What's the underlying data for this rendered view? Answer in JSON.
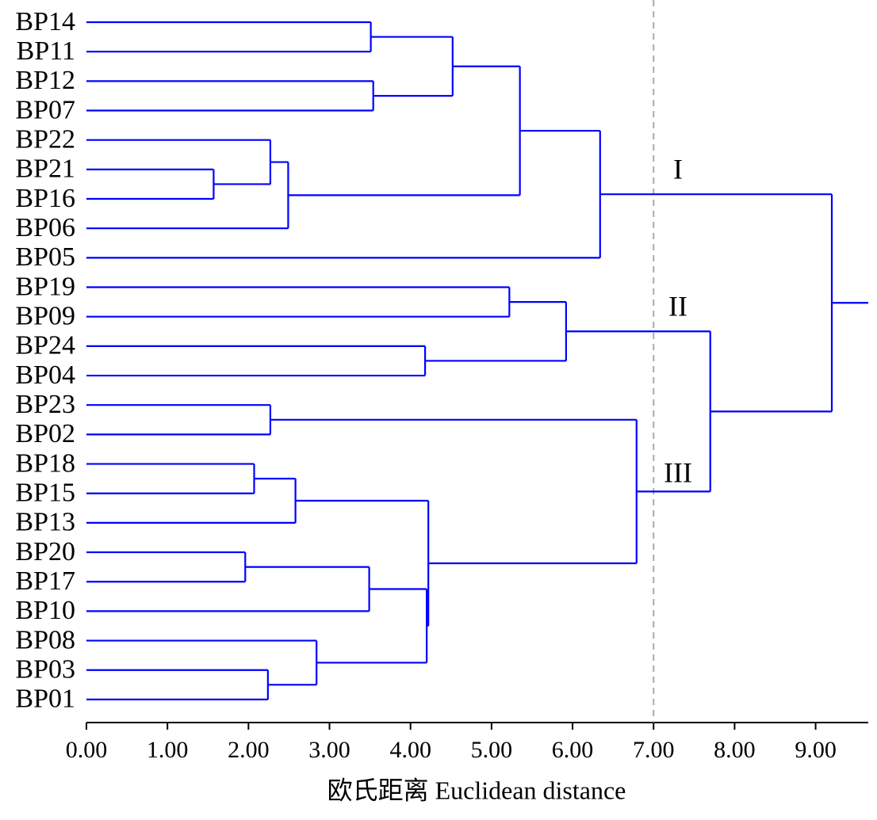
{
  "chart_data": {
    "type": "dendrogram",
    "orientation": "horizontal",
    "color": "#0000ff",
    "xlabel": "欧氏距离 Euclidean distance",
    "xlim": [
      0,
      9.65
    ],
    "xticks": [
      {
        "value": 0,
        "label": "0.00"
      },
      {
        "value": 1,
        "label": "1.00"
      },
      {
        "value": 2,
        "label": "2.00"
      },
      {
        "value": 3,
        "label": "3.00"
      },
      {
        "value": 4,
        "label": "4.00"
      },
      {
        "value": 5,
        "label": "5.00"
      },
      {
        "value": 6,
        "label": "6.00"
      },
      {
        "value": 7,
        "label": "7.00"
      },
      {
        "value": 8,
        "label": "8.00"
      },
      {
        "value": 9,
        "label": "9.00"
      }
    ],
    "cutoff": 7,
    "cutoff_color": "#aaaaaa",
    "annotations": [
      "I",
      "II",
      "III"
    ],
    "tree": {
      "height": 9.2,
      "children": [
        {
          "height": 6.34,
          "children": [
            {
              "height": 5.35,
              "children": [
                {
                  "height": 4.52,
                  "children": [
                    {
                      "height": 3.51,
                      "children": [
                        {
                          "label": "BP14"
                        },
                        {
                          "label": "BP11"
                        }
                      ]
                    },
                    {
                      "height": 3.54,
                      "children": [
                        {
                          "label": "BP12"
                        },
                        {
                          "label": "BP07"
                        }
                      ]
                    }
                  ]
                },
                {
                  "height": 2.49,
                  "children": [
                    {
                      "height": 2.27,
                      "children": [
                        {
                          "label": "BP22"
                        },
                        {
                          "height": 1.57,
                          "children": [
                            {
                              "label": "BP21"
                            },
                            {
                              "label": "BP16"
                            }
                          ]
                        }
                      ]
                    },
                    {
                      "label": "BP06"
                    }
                  ]
                }
              ]
            },
            {
              "label": "BP05"
            }
          ]
        },
        {
          "height": 7.7,
          "children": [
            {
              "height": 5.92,
              "children": [
                {
                  "height": 5.22,
                  "children": [
                    {
                      "label": "BP19"
                    },
                    {
                      "label": "BP09"
                    }
                  ]
                },
                {
                  "height": 4.18,
                  "children": [
                    {
                      "label": "BP24"
                    },
                    {
                      "label": "BP04"
                    }
                  ]
                }
              ]
            },
            {
              "height": 6.79,
              "children": [
                {
                  "height": 2.27,
                  "children": [
                    {
                      "label": "BP23"
                    },
                    {
                      "label": "BP02"
                    }
                  ]
                },
                {
                  "height": 4.22,
                  "children": [
                    {
                      "height": 2.58,
                      "children": [
                        {
                          "height": 2.07,
                          "children": [
                            {
                              "label": "BP18"
                            },
                            {
                              "label": "BP15"
                            }
                          ]
                        },
                        {
                          "label": "BP13"
                        }
                      ]
                    },
                    {
                      "height": 4.2,
                      "children": [
                        {
                          "height": 3.49,
                          "children": [
                            {
                              "height": 1.96,
                              "children": [
                                {
                                  "label": "BP20"
                                },
                                {
                                  "label": "BP17"
                                }
                              ]
                            },
                            {
                              "label": "BP10"
                            }
                          ]
                        },
                        {
                          "height": 2.84,
                          "children": [
                            {
                              "label": "BP08"
                            },
                            {
                              "height": 2.24,
                              "children": [
                                {
                                  "label": "BP03"
                                },
                                {
                                  "label": "BP01"
                                }
                              ]
                            }
                          ]
                        }
                      ]
                    }
                  ]
                }
              ]
            }
          ]
        }
      ]
    }
  }
}
